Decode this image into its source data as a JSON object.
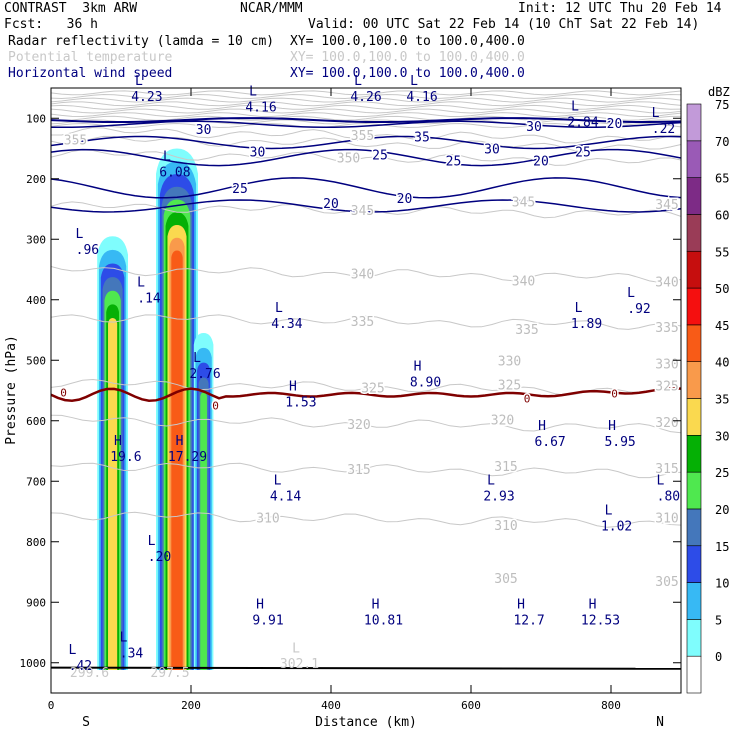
{
  "header": {
    "model": "CONTRAST  3km ARW",
    "org": "NCAR/MMM",
    "init": "Init: 12 UTC Thu 20 Feb 14",
    "fcst": "Fcst:   36 h",
    "valid": "Valid: 00 UTC Sat 22 Feb 14 (10 ChT Sat 22 Feb 14)",
    "fields": [
      {
        "name": "Radar reflectivity (lamda = 10 cm)",
        "xy": "XY= 100.0,100.0 to 100.0,400.0",
        "color": "#000000"
      },
      {
        "name": "Potential temperature",
        "xy": "XY= 100.0,100.0 to 100.0,400.0",
        "color": "#c8c8c8"
      },
      {
        "name": "Horizontal wind speed",
        "xy": "XY= 100.0,100.0 to 100.0,400.0",
        "color": "#000080"
      }
    ]
  },
  "chart_data": {
    "type": "heatmap",
    "xlabel": "Distance (km)",
    "ylabel": "Pressure (hPa)",
    "xlim": [
      0,
      900
    ],
    "ylim": [
      1050,
      50
    ],
    "x_ticks": [
      0,
      200,
      400,
      600,
      800
    ],
    "y_ticks": [
      100,
      200,
      300,
      400,
      500,
      600,
      700,
      800,
      900,
      1000
    ],
    "edge_labels": {
      "left": "S",
      "right": "N"
    },
    "colorbar": {
      "unit": "dBZ",
      "levels": [
        0,
        5,
        10,
        15,
        20,
        25,
        30,
        35,
        40,
        45,
        50,
        55,
        60,
        65,
        70,
        75
      ],
      "colors": [
        "#ffffff",
        "#7ffdfd",
        "#37b9f4",
        "#2d4ce8",
        "#4477bb",
        "#4fe84f",
        "#05b005",
        "#fad94f",
        "#f99a4b",
        "#f85b17",
        "#f50f0f",
        "#c60e0e",
        "#9a3c57",
        "#7d2b86",
        "#9a5ab6",
        "#c29ad9"
      ]
    },
    "reflectivity_cells": [
      {
        "x_center": 88,
        "top_hPa": 295,
        "bottom_hPa": 1012,
        "half_width_km": 22,
        "peak_dBZ": 35
      },
      {
        "x_center": 180,
        "top_hPa": 150,
        "bottom_hPa": 1012,
        "half_width_km": 30,
        "peak_dBZ": 45
      },
      {
        "x_center": 218,
        "top_hPa": 455,
        "bottom_hPa": 1012,
        "half_width_km": 14,
        "peak_dBZ": 25
      }
    ],
    "theta_contour_labels": [
      {
        "v": "355",
        "x": 35,
        "p": 135
      },
      {
        "v": "355",
        "x": 445,
        "p": 128
      },
      {
        "v": "350",
        "x": 425,
        "p": 165
      },
      {
        "v": "345",
        "x": 445,
        "p": 252
      },
      {
        "v": "345",
        "x": 675,
        "p": 238
      },
      {
        "v": "345",
        "x": 880,
        "p": 242
      },
      {
        "v": "340",
        "x": 445,
        "p": 357
      },
      {
        "v": "340",
        "x": 675,
        "p": 368
      },
      {
        "v": "340",
        "x": 880,
        "p": 370
      },
      {
        "v": "335",
        "x": 445,
        "p": 435
      },
      {
        "v": "335",
        "x": 680,
        "p": 448
      },
      {
        "v": "335",
        "x": 880,
        "p": 445
      },
      {
        "v": "330",
        "x": 655,
        "p": 500
      },
      {
        "v": "330",
        "x": 880,
        "p": 505
      },
      {
        "v": "325",
        "x": 460,
        "p": 545
      },
      {
        "v": "325",
        "x": 655,
        "p": 540
      },
      {
        "v": "325",
        "x": 880,
        "p": 542
      },
      {
        "v": "320",
        "x": 440,
        "p": 605
      },
      {
        "v": "320",
        "x": 645,
        "p": 598
      },
      {
        "v": "320",
        "x": 880,
        "p": 602
      },
      {
        "v": "315",
        "x": 440,
        "p": 680
      },
      {
        "v": "315",
        "x": 650,
        "p": 675
      },
      {
        "v": "315",
        "x": 880,
        "p": 678
      },
      {
        "v": "310",
        "x": 310,
        "p": 760
      },
      {
        "v": "310",
        "x": 650,
        "p": 772
      },
      {
        "v": "310",
        "x": 880,
        "p": 760
      },
      {
        "v": "305",
        "x": 650,
        "p": 860
      },
      {
        "v": "305",
        "x": 880,
        "p": 865
      }
    ],
    "wind_contour_labels": [
      {
        "v": "30",
        "x": 218,
        "p": 118
      },
      {
        "v": "35",
        "x": 530,
        "p": 130
      },
      {
        "v": "30",
        "x": 690,
        "p": 113
      },
      {
        "v": "20",
        "x": 805,
        "p": 108
      },
      {
        "v": "30",
        "x": 295,
        "p": 155
      },
      {
        "v": "25",
        "x": 470,
        "p": 160
      },
      {
        "v": "25",
        "x": 575,
        "p": 170
      },
      {
        "v": "30",
        "x": 630,
        "p": 150
      },
      {
        "v": "20",
        "x": 700,
        "p": 170
      },
      {
        "v": "25",
        "x": 760,
        "p": 155
      },
      {
        "v": "25",
        "x": 270,
        "p": 215
      },
      {
        "v": "20",
        "x": 400,
        "p": 240
      },
      {
        "v": "20",
        "x": 505,
        "p": 232
      }
    ],
    "zero_line_labels": [
      {
        "v": "0",
        "x": 18,
        "p": 553
      },
      {
        "v": "0",
        "x": 235,
        "p": 575
      },
      {
        "v": "0",
        "x": 680,
        "p": 563
      },
      {
        "v": "0",
        "x": 805,
        "p": 555
      }
    ],
    "extrema_labels": [
      {
        "t": "L",
        "v": "4.23",
        "x": 137,
        "p": 65
      },
      {
        "t": "L",
        "v": "4.16",
        "x": 300,
        "p": 82
      },
      {
        "t": "L",
        "v": "4.26",
        "x": 450,
        "p": 65
      },
      {
        "t": "L",
        "v": "4.16",
        "x": 530,
        "p": 65
      },
      {
        "t": "L",
        "v": "2.84",
        "x": 760,
        "p": 107
      },
      {
        "t": "L",
        "v": ".22",
        "x": 875,
        "p": 118
      },
      {
        "t": "L",
        "v": "6.08",
        "x": 177,
        "p": 190
      },
      {
        "t": "L",
        "v": ".96",
        "x": 52,
        "p": 318
      },
      {
        "t": "L",
        "v": ".14",
        "x": 140,
        "p": 398
      },
      {
        "t": "L",
        "v": "4.34",
        "x": 337,
        "p": 440
      },
      {
        "t": "L",
        "v": "1.89",
        "x": 765,
        "p": 440
      },
      {
        "t": "L",
        "v": ".92",
        "x": 840,
        "p": 415
      },
      {
        "t": "L",
        "v": "2.76",
        "x": 220,
        "p": 523
      },
      {
        "t": "H",
        "v": "8.90",
        "x": 535,
        "p": 537
      },
      {
        "t": "H",
        "v": "1.53",
        "x": 357,
        "p": 570
      },
      {
        "t": "H",
        "v": "6.67",
        "x": 713,
        "p": 635
      },
      {
        "t": "H",
        "v": "5.95",
        "x": 813,
        "p": 635
      },
      {
        "t": "H",
        "v": "19.6",
        "x": 107,
        "p": 660
      },
      {
        "t": "H",
        "v": "17.29",
        "x": 195,
        "p": 660
      },
      {
        "t": "L",
        "v": "4.14",
        "x": 335,
        "p": 725
      },
      {
        "t": "L",
        "v": "2.93",
        "x": 640,
        "p": 725
      },
      {
        "t": "L",
        "v": "1.02",
        "x": 808,
        "p": 775
      },
      {
        "t": "L",
        "v": ".80",
        "x": 882,
        "p": 725
      },
      {
        "t": "L",
        "v": ".20",
        "x": 155,
        "p": 825
      },
      {
        "t": "H",
        "v": "9.91",
        "x": 310,
        "p": 930
      },
      {
        "t": "H",
        "v": "10.81",
        "x": 475,
        "p": 930
      },
      {
        "t": "H",
        "v": "12.7",
        "x": 683,
        "p": 930
      },
      {
        "t": "H",
        "v": "12.53",
        "x": 785,
        "p": 930
      },
      {
        "t": "L",
        "v": ".42",
        "x": 42,
        "p": 1005
      },
      {
        "t": "L",
        "v": ".34",
        "x": 115,
        "p": 985
      }
    ],
    "surface_labels": [
      {
        "v": "299.6",
        "x": 55,
        "p": 1015
      },
      {
        "v": "297.5",
        "x": 170,
        "p": 1015
      },
      {
        "v": "302.1",
        "x": 355,
        "p": 1000
      },
      {
        "v": "L",
        "x": 350,
        "p": 975
      }
    ]
  }
}
